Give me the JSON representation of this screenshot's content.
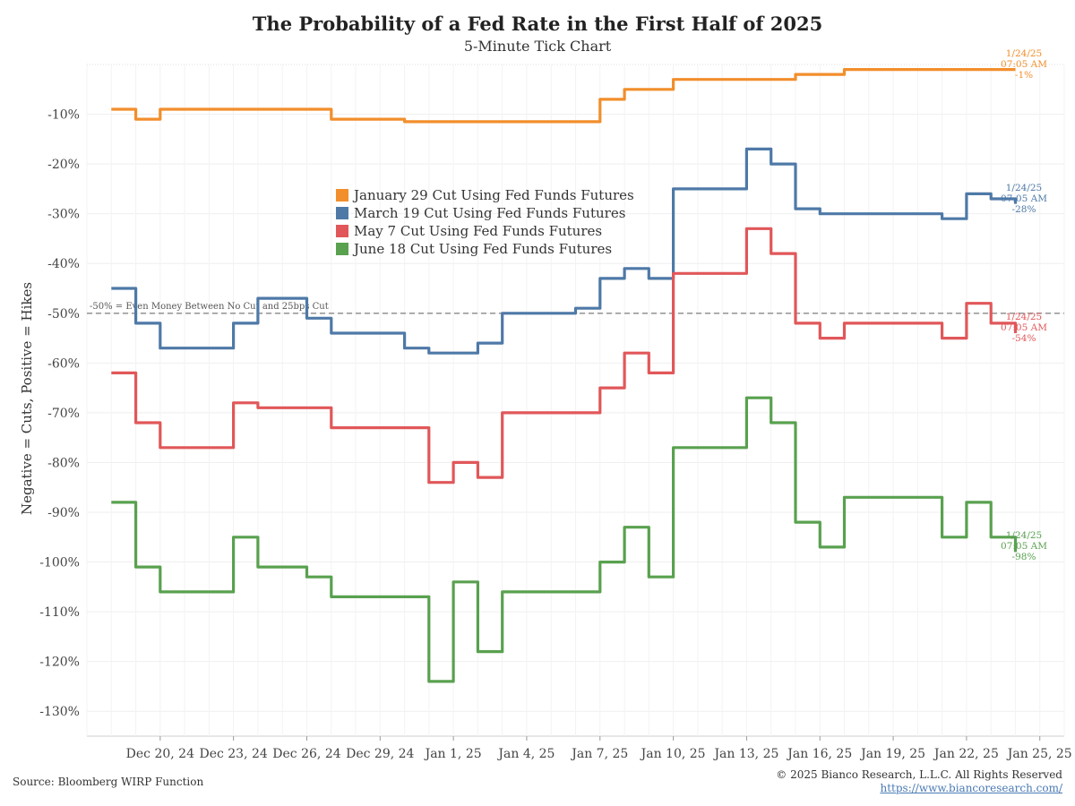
{
  "chart_data": {
    "type": "line",
    "title": "The Probability of a Fed Rate in the First Half of 2025",
    "subtitle": "5-Minute Tick Chart",
    "ylabel": "Negative = Cuts, Positive = Hikes",
    "xlabel": "",
    "ylim": [
      -135,
      0
    ],
    "xlim": [
      "2024-12-17",
      "2025-01-26"
    ],
    "y_ticks": [
      -10,
      -20,
      -30,
      -40,
      -50,
      -60,
      -70,
      -80,
      -90,
      -100,
      -110,
      -120,
      -130
    ],
    "y_tick_labels": [
      "-10%",
      "-20%",
      "-30%",
      "-40%",
      "-50%",
      "-60%",
      "-70%",
      "-80%",
      "-90%",
      "-100%",
      "-110%",
      "-120%",
      "-130%"
    ],
    "x_tick_labels": [
      "Dec 20, 24",
      "Dec 23, 24",
      "Dec 26, 24",
      "Dec 29, 24",
      "Jan 1, 25",
      "Jan 4, 25",
      "Jan 7, 25",
      "Jan 10, 25",
      "Jan 13, 25",
      "Jan 16, 25",
      "Jan 19, 25",
      "Jan 22, 25",
      "Jan 25, 25"
    ],
    "grid": true,
    "legend_placement": "center",
    "reference_line": {
      "value": -50,
      "label": "-50% = Even Money Between No Cut and 25bps Cut"
    },
    "series": [
      {
        "name": "January 29 Cut Using Fed Funds Futures",
        "color": "#f28e2b",
        "end_label": [
          "1/24/25",
          "07:05 AM",
          "-1%"
        ],
        "x": [
          "2024-12-18",
          "2024-12-19",
          "2024-12-20",
          "2024-12-22",
          "2024-12-23",
          "2024-12-24",
          "2024-12-26",
          "2024-12-27",
          "2024-12-30",
          "2025-01-03",
          "2025-01-06",
          "2025-01-07",
          "2025-01-08",
          "2025-01-09",
          "2025-01-10",
          "2025-01-13",
          "2025-01-15",
          "2025-01-17",
          "2025-01-21",
          "2025-01-24"
        ],
        "values": [
          -9,
          -11,
          -9,
          -9,
          -9,
          -9,
          -9,
          -11,
          -11.5,
          -11.5,
          -11.5,
          -7,
          -5,
          -5,
          -3,
          -3,
          -2,
          -1,
          -1,
          -1
        ]
      },
      {
        "name": "March 19 Cut Using Fed Funds Futures",
        "color": "#4e79a7",
        "end_label": [
          "1/24/25",
          "07:05 AM",
          "-28%"
        ],
        "x": [
          "2024-12-18",
          "2024-12-19",
          "2024-12-20",
          "2024-12-22",
          "2024-12-23",
          "2024-12-24",
          "2024-12-26",
          "2024-12-27",
          "2024-12-30",
          "2024-12-31",
          "2025-01-01",
          "2025-01-02",
          "2025-01-03",
          "2025-01-06",
          "2025-01-07",
          "2025-01-08",
          "2025-01-09",
          "2025-01-10",
          "2025-01-13",
          "2025-01-14",
          "2025-01-15",
          "2025-01-16",
          "2025-01-17",
          "2025-01-21",
          "2025-01-22",
          "2025-01-23",
          "2025-01-24"
        ],
        "values": [
          -45,
          -52,
          -57,
          -57,
          -52,
          -47,
          -51,
          -54,
          -57,
          -58,
          -58,
          -56,
          -50,
          -49,
          -43,
          -41,
          -43,
          -25,
          -17,
          -20,
          -29,
          -30,
          -30,
          -31,
          -26,
          -27,
          -28
        ]
      },
      {
        "name": "May 7 Cut Using Fed Funds Futures",
        "color": "#e15759",
        "end_label": [
          "1/24/25",
          "07:05 AM",
          "-54%"
        ],
        "x": [
          "2024-12-18",
          "2024-12-19",
          "2024-12-20",
          "2024-12-22",
          "2024-12-23",
          "2024-12-24",
          "2024-12-26",
          "2024-12-27",
          "2024-12-30",
          "2024-12-31",
          "2025-01-01",
          "2025-01-02",
          "2025-01-03",
          "2025-01-06",
          "2025-01-07",
          "2025-01-08",
          "2025-01-09",
          "2025-01-10",
          "2025-01-13",
          "2025-01-14",
          "2025-01-15",
          "2025-01-16",
          "2025-01-17",
          "2025-01-21",
          "2025-01-22",
          "2025-01-23",
          "2025-01-24"
        ],
        "values": [
          -62,
          -72,
          -77,
          -77,
          -68,
          -69,
          -69,
          -73,
          -73,
          -84,
          -80,
          -83,
          -70,
          -70,
          -65,
          -58,
          -62,
          -42,
          -33,
          -38,
          -52,
          -55,
          -52,
          -55,
          -48,
          -52,
          -54
        ]
      },
      {
        "name": "June 18 Cut Using Fed Funds Futures",
        "color": "#59a14f",
        "end_label": [
          "1/24/25",
          "07:05 AM",
          "-98%"
        ],
        "x": [
          "2024-12-18",
          "2024-12-19",
          "2024-12-20",
          "2024-12-22",
          "2024-12-23",
          "2024-12-24",
          "2024-12-26",
          "2024-12-27",
          "2024-12-30",
          "2024-12-31",
          "2025-01-01",
          "2025-01-02",
          "2025-01-03",
          "2025-01-06",
          "2025-01-07",
          "2025-01-08",
          "2025-01-09",
          "2025-01-10",
          "2025-01-13",
          "2025-01-14",
          "2025-01-15",
          "2025-01-16",
          "2025-01-17",
          "2025-01-21",
          "2025-01-22",
          "2025-01-23",
          "2025-01-24"
        ],
        "values": [
          -88,
          -101,
          -106,
          -106,
          -95,
          -101,
          -103,
          -107,
          -107,
          -124,
          -104,
          -118,
          -106,
          -106,
          -100,
          -93,
          -103,
          -77,
          -67,
          -72,
          -92,
          -97,
          -87,
          -95,
          -88,
          -95,
          -98
        ]
      }
    ]
  },
  "footer": {
    "source": "Source: Bloomberg WIRP Function",
    "copyright": "© 2025 Bianco Research, L.L.C. All Rights Reserved",
    "url": "https://www.biancoresearch.com/"
  }
}
